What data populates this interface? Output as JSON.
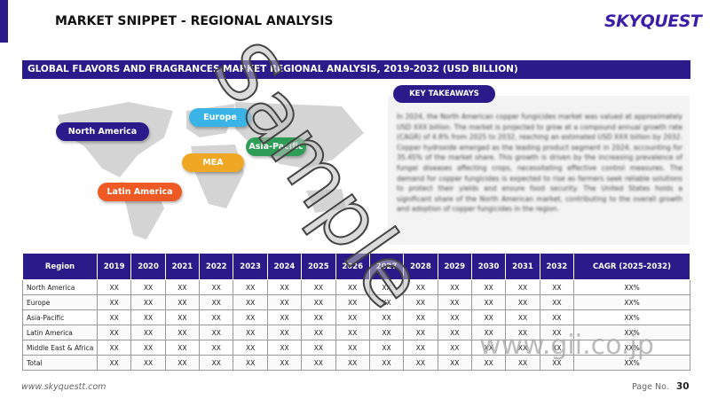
{
  "header": {
    "title": "MARKET SNIPPET - REGIONAL ANALYSIS",
    "logo": "SKYQUEST"
  },
  "banner": "GLOBAL FLAVORS AND FRAGRANCES MARKET REGIONAL ANALYSIS, 2019-2032 (USD BILLION)",
  "map": {
    "labels": [
      "North America",
      "Europe",
      "Asia-Pacific",
      "MEA",
      "Latin America"
    ]
  },
  "takeaways": {
    "title": "KEY TAKEAWAYS",
    "text": "In 2024, the North American copper fungicides market was valued at approximately USD XXX billion. The market is projected to grow at a compound annual growth rate (CAGR) of 4.8% from 2025 to 2032, reaching an estimated USD XXX billion by 2032. Copper hydroxide emerged as the leading product segment in 2024, accounting for 35.45% of the market share. This growth is driven by the increasing prevalence of fungal diseases affecting crops, necessitating effective control measures. The demand for copper fungicides is expected to rise as farmers seek reliable solutions to protect their yields and ensure food security. The United States holds a significant share of the North American market, contributing to the overall growth and adoption of copper fungicides in the region."
  },
  "table": {
    "columns": [
      "Region",
      "2019",
      "2020",
      "2021",
      "2022",
      "2023",
      "2024",
      "2025",
      "2026",
      "2027",
      "2028",
      "2029",
      "2030",
      "2031",
      "2032",
      "CAGR (2025-2032)"
    ],
    "rows": [
      [
        "North America",
        "XX",
        "XX",
        "XX",
        "XX",
        "XX",
        "XX",
        "XX",
        "XX",
        "XX",
        "XX",
        "XX",
        "XX",
        "XX",
        "XX",
        "XX%"
      ],
      [
        "Europe",
        "XX",
        "XX",
        "XX",
        "XX",
        "XX",
        "XX",
        "XX",
        "XX",
        "XX",
        "XX",
        "XX",
        "XX",
        "XX",
        "XX",
        "XX%"
      ],
      [
        "Asia-Pacific",
        "XX",
        "XX",
        "XX",
        "XX",
        "XX",
        "XX",
        "XX",
        "XX",
        "XX",
        "XX",
        "XX",
        "XX",
        "XX",
        "XX",
        "XX%"
      ],
      [
        "Latin America",
        "XX",
        "XX",
        "XX",
        "XX",
        "XX",
        "XX",
        "XX",
        "XX",
        "XX",
        "XX",
        "XX",
        "XX",
        "XX",
        "XX",
        "XX%"
      ],
      [
        "Middle East & Africa",
        "XX",
        "XX",
        "XX",
        "XX",
        "XX",
        "XX",
        "XX",
        "XX",
        "XX",
        "XX",
        "XX",
        "XX",
        "XX",
        "XX",
        "XX%"
      ],
      [
        "Total",
        "XX",
        "XX",
        "XX",
        "XX",
        "XX",
        "XX",
        "XX",
        "XX",
        "XX",
        "XX",
        "XX",
        "XX",
        "XX",
        "XX",
        "XX%"
      ]
    ]
  },
  "footer": {
    "website": "www.skyquestt.com",
    "page_label": "Page No.",
    "page_number": "30"
  },
  "watermarks": [
    "Sample",
    "www.gii.co.jp"
  ]
}
